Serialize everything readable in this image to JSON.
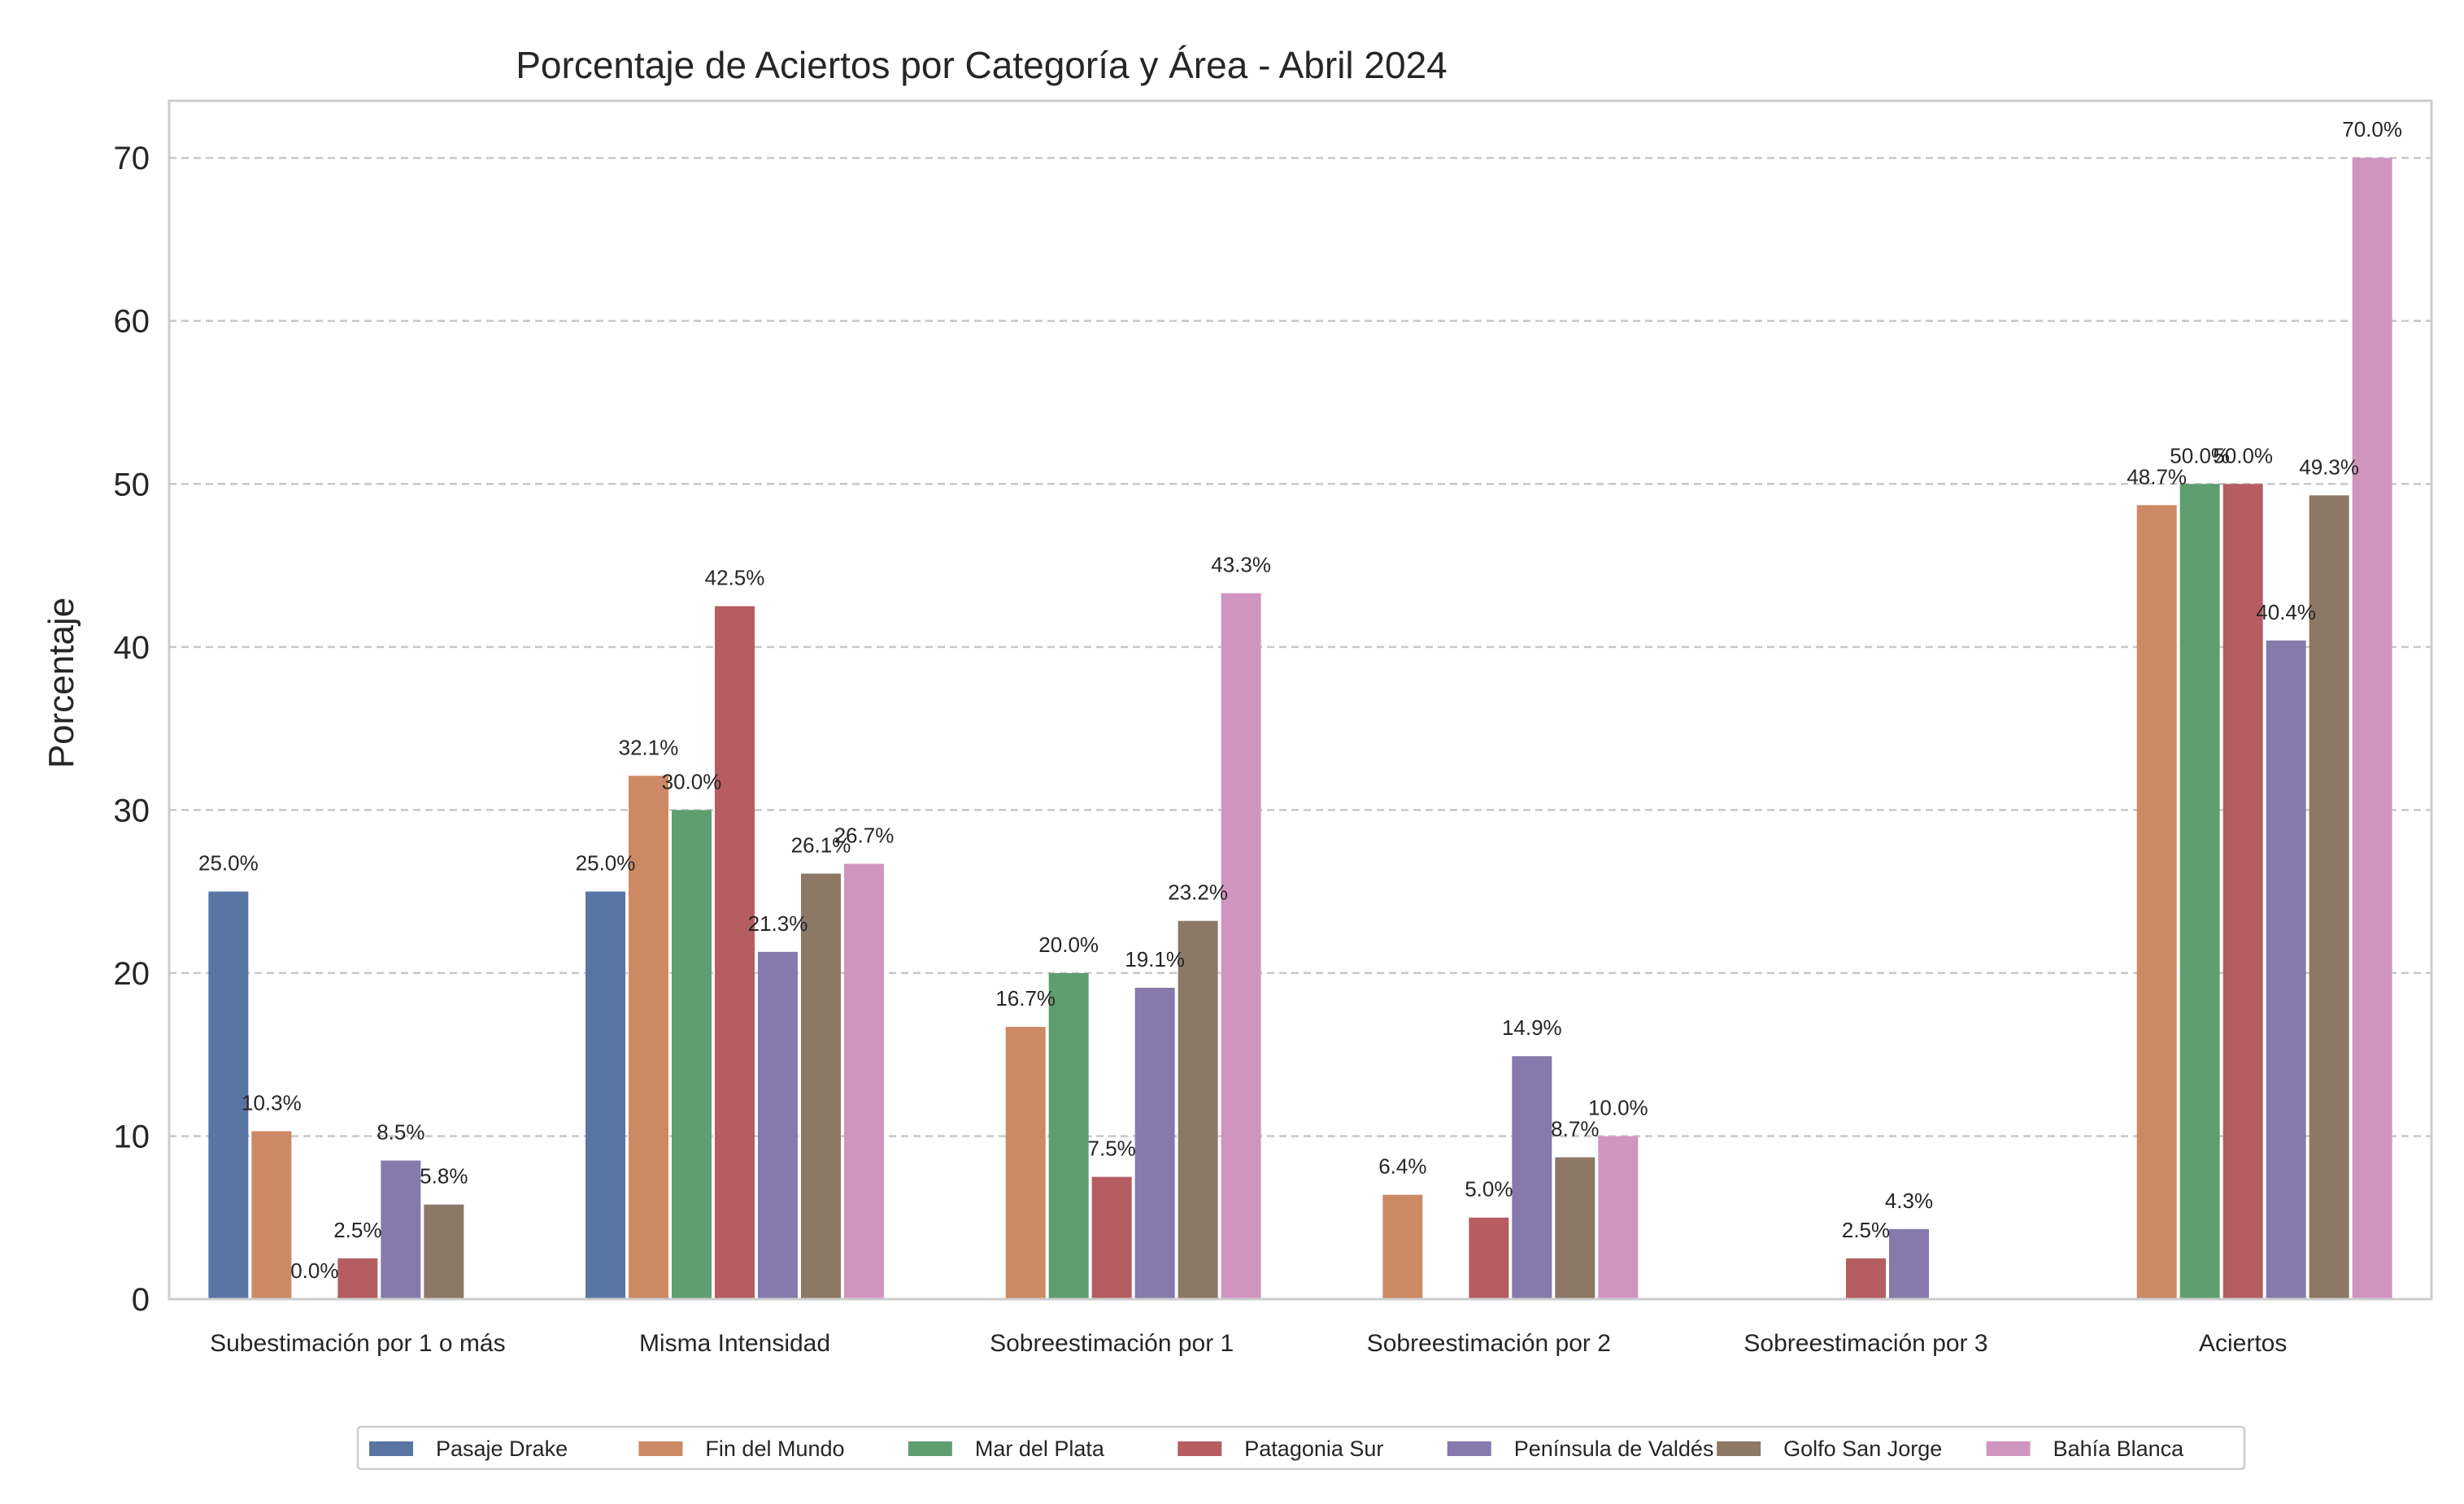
{
  "chart_data": {
    "type": "bar",
    "title": "Porcentaje de Aciertos por Categoría y Área - Abril 2024",
    "xlabel": "",
    "ylabel": "Porcentaje",
    "ylim": [
      0,
      73.5
    ],
    "yticks": [
      0,
      10,
      20,
      30,
      40,
      50,
      60,
      70
    ],
    "grid": "horizontal dashed",
    "legend_position": "bottom-center",
    "label_format": "%",
    "categories": [
      "Subestimación por 1 o más",
      "Misma Intensidad",
      "Sobreestimación por 1",
      "Sobreestimación por 2",
      "Sobreestimación por 3",
      "Aciertos"
    ],
    "series": [
      {
        "name": "Pasaje Drake",
        "color": "#5875a4",
        "values": [
          25.0,
          25.0,
          null,
          null,
          null,
          null
        ]
      },
      {
        "name": "Fin del Mundo",
        "color": "#cc8963",
        "values": [
          10.3,
          32.1,
          16.7,
          6.4,
          null,
          48.7
        ]
      },
      {
        "name": "Mar del Plata",
        "color": "#5f9e6e",
        "values": [
          0.0,
          30.0,
          20.0,
          null,
          null,
          50.0
        ]
      },
      {
        "name": "Patagonia Sur",
        "color": "#b55d60",
        "values": [
          2.5,
          42.5,
          7.5,
          5.0,
          2.5,
          50.0
        ]
      },
      {
        "name": "Península de Valdés",
        "color": "#857aab",
        "values": [
          8.5,
          21.3,
          19.1,
          14.9,
          4.3,
          40.4
        ]
      },
      {
        "name": "Golfo San Jorge",
        "color": "#8d7866",
        "values": [
          5.8,
          26.1,
          23.2,
          8.7,
          null,
          49.3
        ]
      },
      {
        "name": "Bahía Blanca",
        "color": "#d095bf",
        "values": [
          null,
          26.7,
          43.3,
          10.0,
          null,
          70.0
        ]
      }
    ]
  }
}
